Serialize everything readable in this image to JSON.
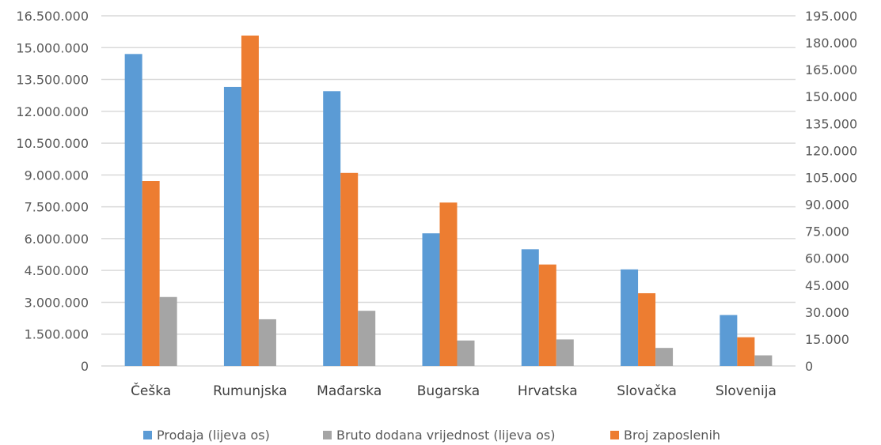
{
  "chart_data": {
    "type": "bar",
    "categories": [
      "Češka",
      "Rumunjska",
      "Mađarska",
      "Bugarska",
      "Hrvatska",
      "Slovačka",
      "Slovenija"
    ],
    "series": [
      {
        "name": "Prodaja (lijeva os)",
        "axis": "left",
        "color": "#5b9bd5",
        "values": [
          14700000,
          13150000,
          12950000,
          6250000,
          5500000,
          4550000,
          2400000
        ]
      },
      {
        "name": "Broj zaposlenih",
        "axis": "right",
        "color": "#ed7d31",
        "values": [
          103000,
          184000,
          107500,
          91000,
          56500,
          40500,
          16000
        ]
      },
      {
        "name": "Bruto dodana vrijednost (lijeva os)",
        "axis": "left",
        "color": "#a5a5a5",
        "values": [
          3250000,
          2200000,
          2600000,
          1200000,
          1250000,
          850000,
          500000
        ]
      }
    ],
    "left_axis": {
      "ylim": [
        0,
        16500000
      ],
      "ticks": [
        "0",
        "1.500.000",
        "3.000.000",
        "4.500.000",
        "6.000.000",
        "7.500.000",
        "9.000.000",
        "10.500.000",
        "12.000.000",
        "13.500.000",
        "15.000.000",
        "16.500.000"
      ]
    },
    "right_axis": {
      "ylim": [
        0,
        195000
      ],
      "ticks": [
        "0",
        "15.000",
        "30.000",
        "45.000",
        "60.000",
        "75.000",
        "90.000",
        "105.000",
        "120.000",
        "135.000",
        "150.000",
        "165.000",
        "180.000",
        "195.000"
      ]
    },
    "legend": {
      "position": "bottom",
      "items": [
        {
          "label": "Prodaja (lijeva os)",
          "color": "#5b9bd5"
        },
        {
          "label": "Bruto dodana vrijednost (lijeva os)",
          "color": "#a5a5a5"
        },
        {
          "label": "Broj zaposlenih",
          "color": "#ed7d31"
        }
      ]
    },
    "grid": true
  }
}
